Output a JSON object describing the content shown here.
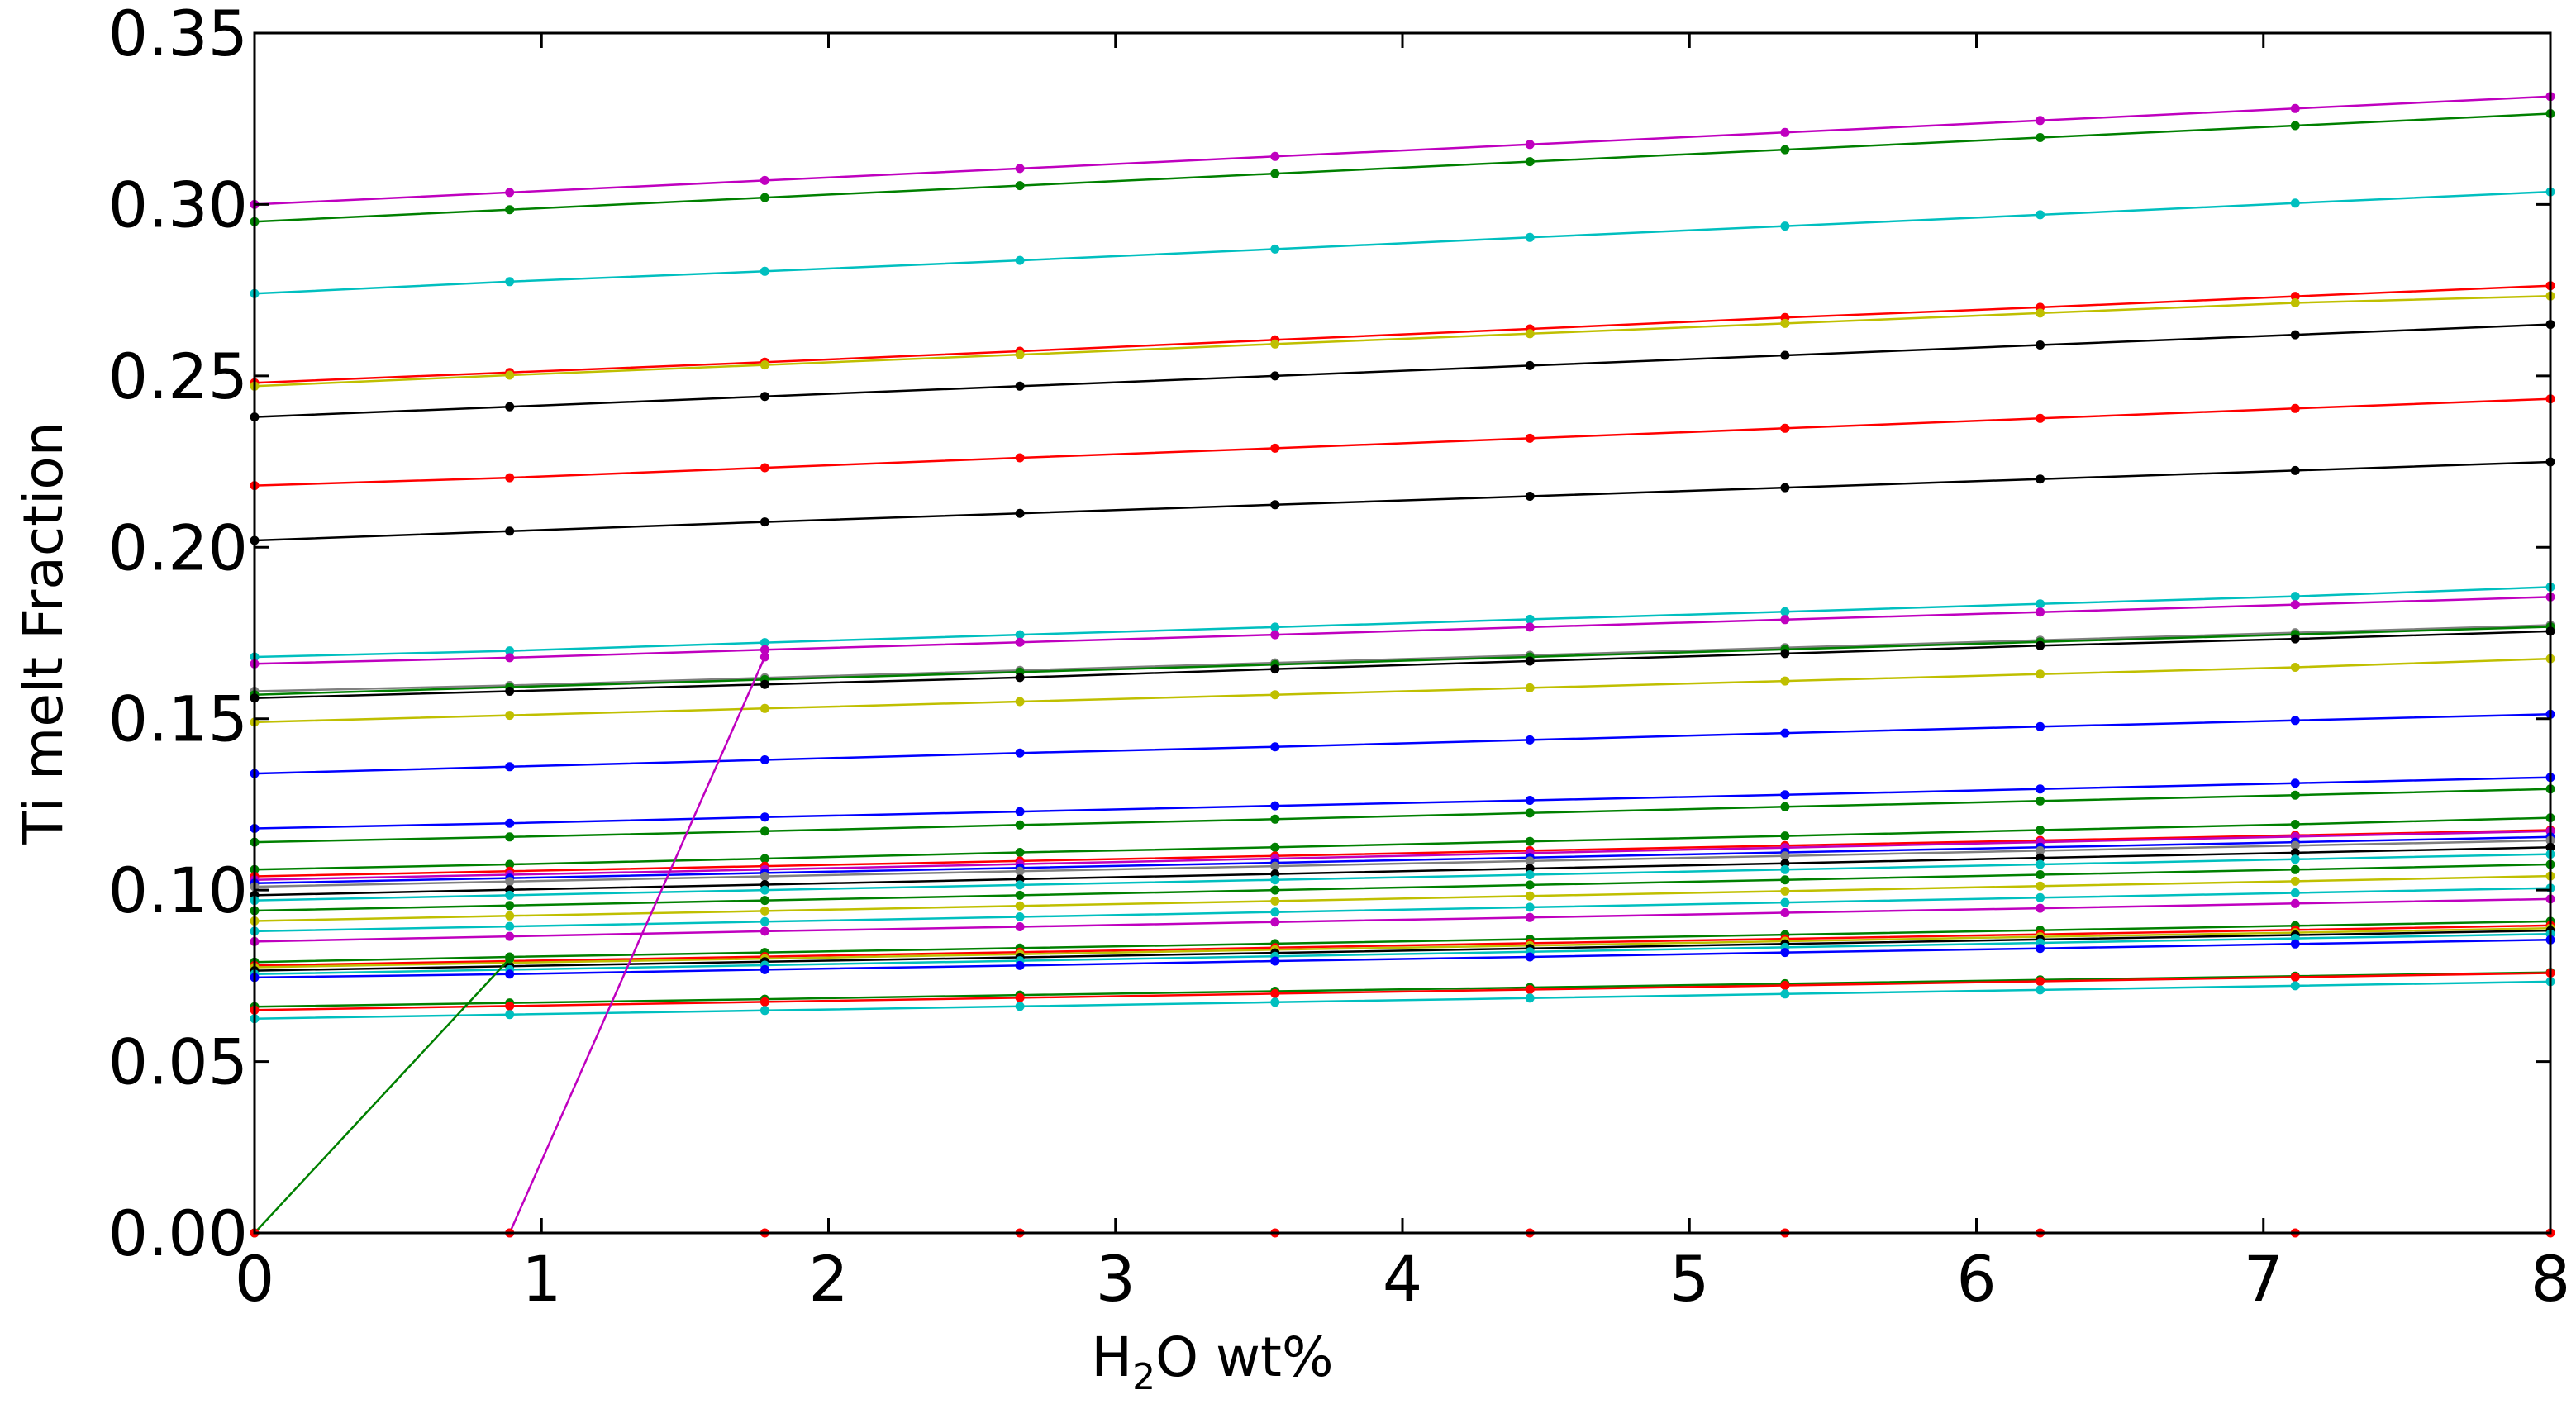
{
  "chart_data": {
    "type": "line",
    "title": "",
    "xlabel": "H",
    "xlabel_sub": "2",
    "xlabel_suffix": "O wt%",
    "ylabel": "Ti melt Fraction",
    "xlim": [
      0,
      8
    ],
    "ylim": [
      0,
      0.35
    ],
    "x_ticks": [
      "0",
      "1",
      "2",
      "3",
      "4",
      "5",
      "6",
      "7",
      "8"
    ],
    "y_ticks": [
      "0.00",
      "0.05",
      "0.10",
      "0.15",
      "0.20",
      "0.25",
      "0.30",
      "0.35"
    ],
    "grid": false,
    "legend": "none",
    "x": [
      0,
      0.889,
      1.778,
      2.667,
      3.556,
      4.444,
      5.333,
      6.222,
      7.111,
      8.0
    ],
    "series": [
      {
        "color": "#bf00bf",
        "values": [
          0.3,
          0.3035,
          0.307,
          0.3105,
          0.314,
          0.3175,
          0.321,
          0.3245,
          0.328,
          0.3315
        ]
      },
      {
        "color": "#008000",
        "values": [
          0.295,
          0.2985,
          0.302,
          0.3055,
          0.309,
          0.3125,
          0.316,
          0.3195,
          0.323,
          0.3265
        ]
      },
      {
        "color": "#00bfbf",
        "values": [
          0.274,
          0.2775,
          0.2805,
          0.2837,
          0.287,
          0.2904,
          0.2937,
          0.297,
          0.3004,
          0.3037
        ]
      },
      {
        "color": "#ff0000",
        "values": [
          0.248,
          0.251,
          0.254,
          0.2572,
          0.2605,
          0.2637,
          0.267,
          0.27,
          0.2732,
          0.2763
        ]
      },
      {
        "color": "#bfbf00",
        "values": [
          0.247,
          0.2502,
          0.2532,
          0.2562,
          0.2593,
          0.2623,
          0.2653,
          0.2683,
          0.2713,
          0.2733
        ]
      },
      {
        "color": "#000000",
        "values": [
          0.238,
          0.241,
          0.244,
          0.247,
          0.25,
          0.253,
          0.256,
          0.259,
          0.262,
          0.265
        ]
      },
      {
        "color": "#ff0000",
        "values": [
          0.218,
          0.2203,
          0.2232,
          0.2261,
          0.2289,
          0.2318,
          0.2347,
          0.2376,
          0.2405,
          0.2433
        ]
      },
      {
        "color": "#000000",
        "values": [
          0.202,
          0.2047,
          0.2074,
          0.2099,
          0.2124,
          0.2149,
          0.2174,
          0.2199,
          0.2224,
          0.2249
        ]
      },
      {
        "color": "#00bfbf",
        "values": [
          0.168,
          0.1698,
          0.1722,
          0.1745,
          0.1767,
          0.179,
          0.1812,
          0.1835,
          0.1857,
          0.1884
        ]
      },
      {
        "color": "#bf00bf",
        "values": [
          0.166,
          0.1678,
          0.1701,
          0.1723,
          0.1745,
          0.1767,
          0.1789,
          0.1811,
          0.1833,
          0.1855
        ]
      },
      {
        "color": "#808080",
        "values": [
          0.158,
          0.1597,
          0.1619,
          0.1641,
          0.1663,
          0.1685,
          0.1707,
          0.1729,
          0.1751,
          0.1773
        ]
      },
      {
        "color": "#008000",
        "values": [
          0.157,
          0.1592,
          0.1614,
          0.1636,
          0.1658,
          0.168,
          0.1702,
          0.1724,
          0.1746,
          0.1768
        ]
      },
      {
        "color": "#000000",
        "values": [
          0.156,
          0.158,
          0.16,
          0.162,
          0.1645,
          0.1668,
          0.169,
          0.1713,
          0.1733,
          0.1755
        ]
      },
      {
        "color": "#bfbf00",
        "values": [
          0.149,
          0.151,
          0.153,
          0.155,
          0.157,
          0.159,
          0.161,
          0.163,
          0.165,
          0.1675
        ]
      },
      {
        "color": "#0000ff",
        "values": [
          0.134,
          0.136,
          0.138,
          0.14,
          0.1418,
          0.1438,
          0.1458,
          0.1477,
          0.1495,
          0.1513
        ]
      },
      {
        "color": "#0000ff",
        "values": [
          0.118,
          0.1195,
          0.1213,
          0.1229,
          0.1246,
          0.1262,
          0.1278,
          0.1295,
          0.1312,
          0.1329
        ]
      },
      {
        "color": "#008000",
        "values": [
          0.114,
          0.1155,
          0.1172,
          0.119,
          0.1207,
          0.1225,
          0.1243,
          0.126,
          0.1277,
          0.1295
        ]
      },
      {
        "color": "#008000",
        "values": [
          0.106,
          0.1075,
          0.1092,
          0.111,
          0.1125,
          0.1142,
          0.1158,
          0.1175,
          0.1192,
          0.1211
        ]
      },
      {
        "color": "#ff0000",
        "values": [
          0.104,
          0.1055,
          0.107,
          0.1085,
          0.11,
          0.1115,
          0.113,
          0.1145,
          0.116,
          0.1175
        ]
      },
      {
        "color": "#bf00bf",
        "values": [
          0.103,
          0.1045,
          0.106,
          0.1076,
          0.1092,
          0.1108,
          0.1124,
          0.114,
          0.1156,
          0.1172
        ]
      },
      {
        "color": "#0000ff",
        "values": [
          0.102,
          0.1035,
          0.105,
          0.1065,
          0.108,
          0.1095,
          0.111,
          0.1125,
          0.114,
          0.1155
        ]
      },
      {
        "color": "#808080",
        "values": [
          0.101,
          0.1025,
          0.104,
          0.1055,
          0.107,
          0.1085,
          0.11,
          0.1115,
          0.113,
          0.1145
        ]
      },
      {
        "color": "#000000",
        "values": [
          0.0985,
          0.1001,
          0.1016,
          0.1032,
          0.1047,
          0.1063,
          0.1078,
          0.1094,
          0.1109,
          0.1125
        ]
      },
      {
        "color": "#00bfbf",
        "values": [
          0.097,
          0.0985,
          0.1,
          0.1015,
          0.103,
          0.1045,
          0.106,
          0.1075,
          0.109,
          0.1105
        ]
      },
      {
        "color": "#008000",
        "values": [
          0.094,
          0.0955,
          0.097,
          0.0985,
          0.1,
          0.1015,
          0.103,
          0.1045,
          0.106,
          0.1075
        ]
      },
      {
        "color": "#bfbf00",
        "values": [
          0.091,
          0.0925,
          0.0939,
          0.0954,
          0.0968,
          0.0983,
          0.0997,
          0.1012,
          0.1026,
          0.1041
        ]
      },
      {
        "color": "#00bfbf",
        "values": [
          0.088,
          0.0894,
          0.0908,
          0.0922,
          0.0936,
          0.095,
          0.0964,
          0.0978,
          0.0992,
          0.1006
        ]
      },
      {
        "color": "#bf00bf",
        "values": [
          0.085,
          0.0865,
          0.088,
          0.0893,
          0.0907,
          0.092,
          0.0934,
          0.0947,
          0.0961,
          0.0974
        ]
      },
      {
        "color": "#008000",
        "values": [
          0.079,
          0.0805,
          0.0818,
          0.0831,
          0.0844,
          0.0857,
          0.087,
          0.0883,
          0.0896,
          0.0909
        ]
      },
      {
        "color": "#ff0000",
        "values": [
          0.078,
          0.0793,
          0.0806,
          0.0819,
          0.0832,
          0.0845,
          0.0858,
          0.0871,
          0.0884,
          0.0897
        ]
      },
      {
        "color": "#bfbf00",
        "values": [
          0.0775,
          0.0788,
          0.08,
          0.0813,
          0.0826,
          0.0838,
          0.0851,
          0.0864,
          0.0876,
          0.0889
        ]
      },
      {
        "color": "#000000",
        "values": [
          0.0765,
          0.0778,
          0.0791,
          0.0804,
          0.0817,
          0.083,
          0.0843,
          0.0856,
          0.0869,
          0.0882
        ]
      },
      {
        "color": "#00bfbf",
        "values": [
          0.0755,
          0.0768,
          0.0781,
          0.0794,
          0.0807,
          0.082,
          0.0833,
          0.0846,
          0.0859,
          0.0872
        ]
      },
      {
        "color": "#0000ff",
        "values": [
          0.0745,
          0.0755,
          0.0768,
          0.078,
          0.0793,
          0.0805,
          0.0818,
          0.083,
          0.0843,
          0.0855
        ]
      },
      {
        "color": "#008000",
        "values": [
          0.066,
          0.0671,
          0.0682,
          0.0694,
          0.0705,
          0.0716,
          0.0727,
          0.0738,
          0.0749,
          0.076
        ]
      },
      {
        "color": "#ff0000",
        "values": [
          0.065,
          0.0662,
          0.0674,
          0.0686,
          0.0698,
          0.071,
          0.0722,
          0.0734,
          0.0746,
          0.0758
        ]
      },
      {
        "color": "#00bfbf",
        "values": [
          0.0625,
          0.0637,
          0.0649,
          0.0661,
          0.0673,
          0.0685,
          0.0697,
          0.0709,
          0.0721,
          0.0733
        ]
      },
      {
        "color": "#008000",
        "values": [
          0.0,
          0.08,
          null,
          null,
          null,
          null,
          null,
          null,
          null,
          null
        ]
      },
      {
        "color": "#bf00bf",
        "values": [
          null,
          0.0,
          0.168,
          null,
          null,
          null,
          null,
          null,
          null,
          null
        ]
      },
      {
        "color": "#ff0000",
        "values": [
          0.0,
          0.0,
          0.0,
          0.0,
          0.0,
          0.0,
          0.0,
          0.0,
          0.0,
          0.0
        ]
      }
    ]
  }
}
